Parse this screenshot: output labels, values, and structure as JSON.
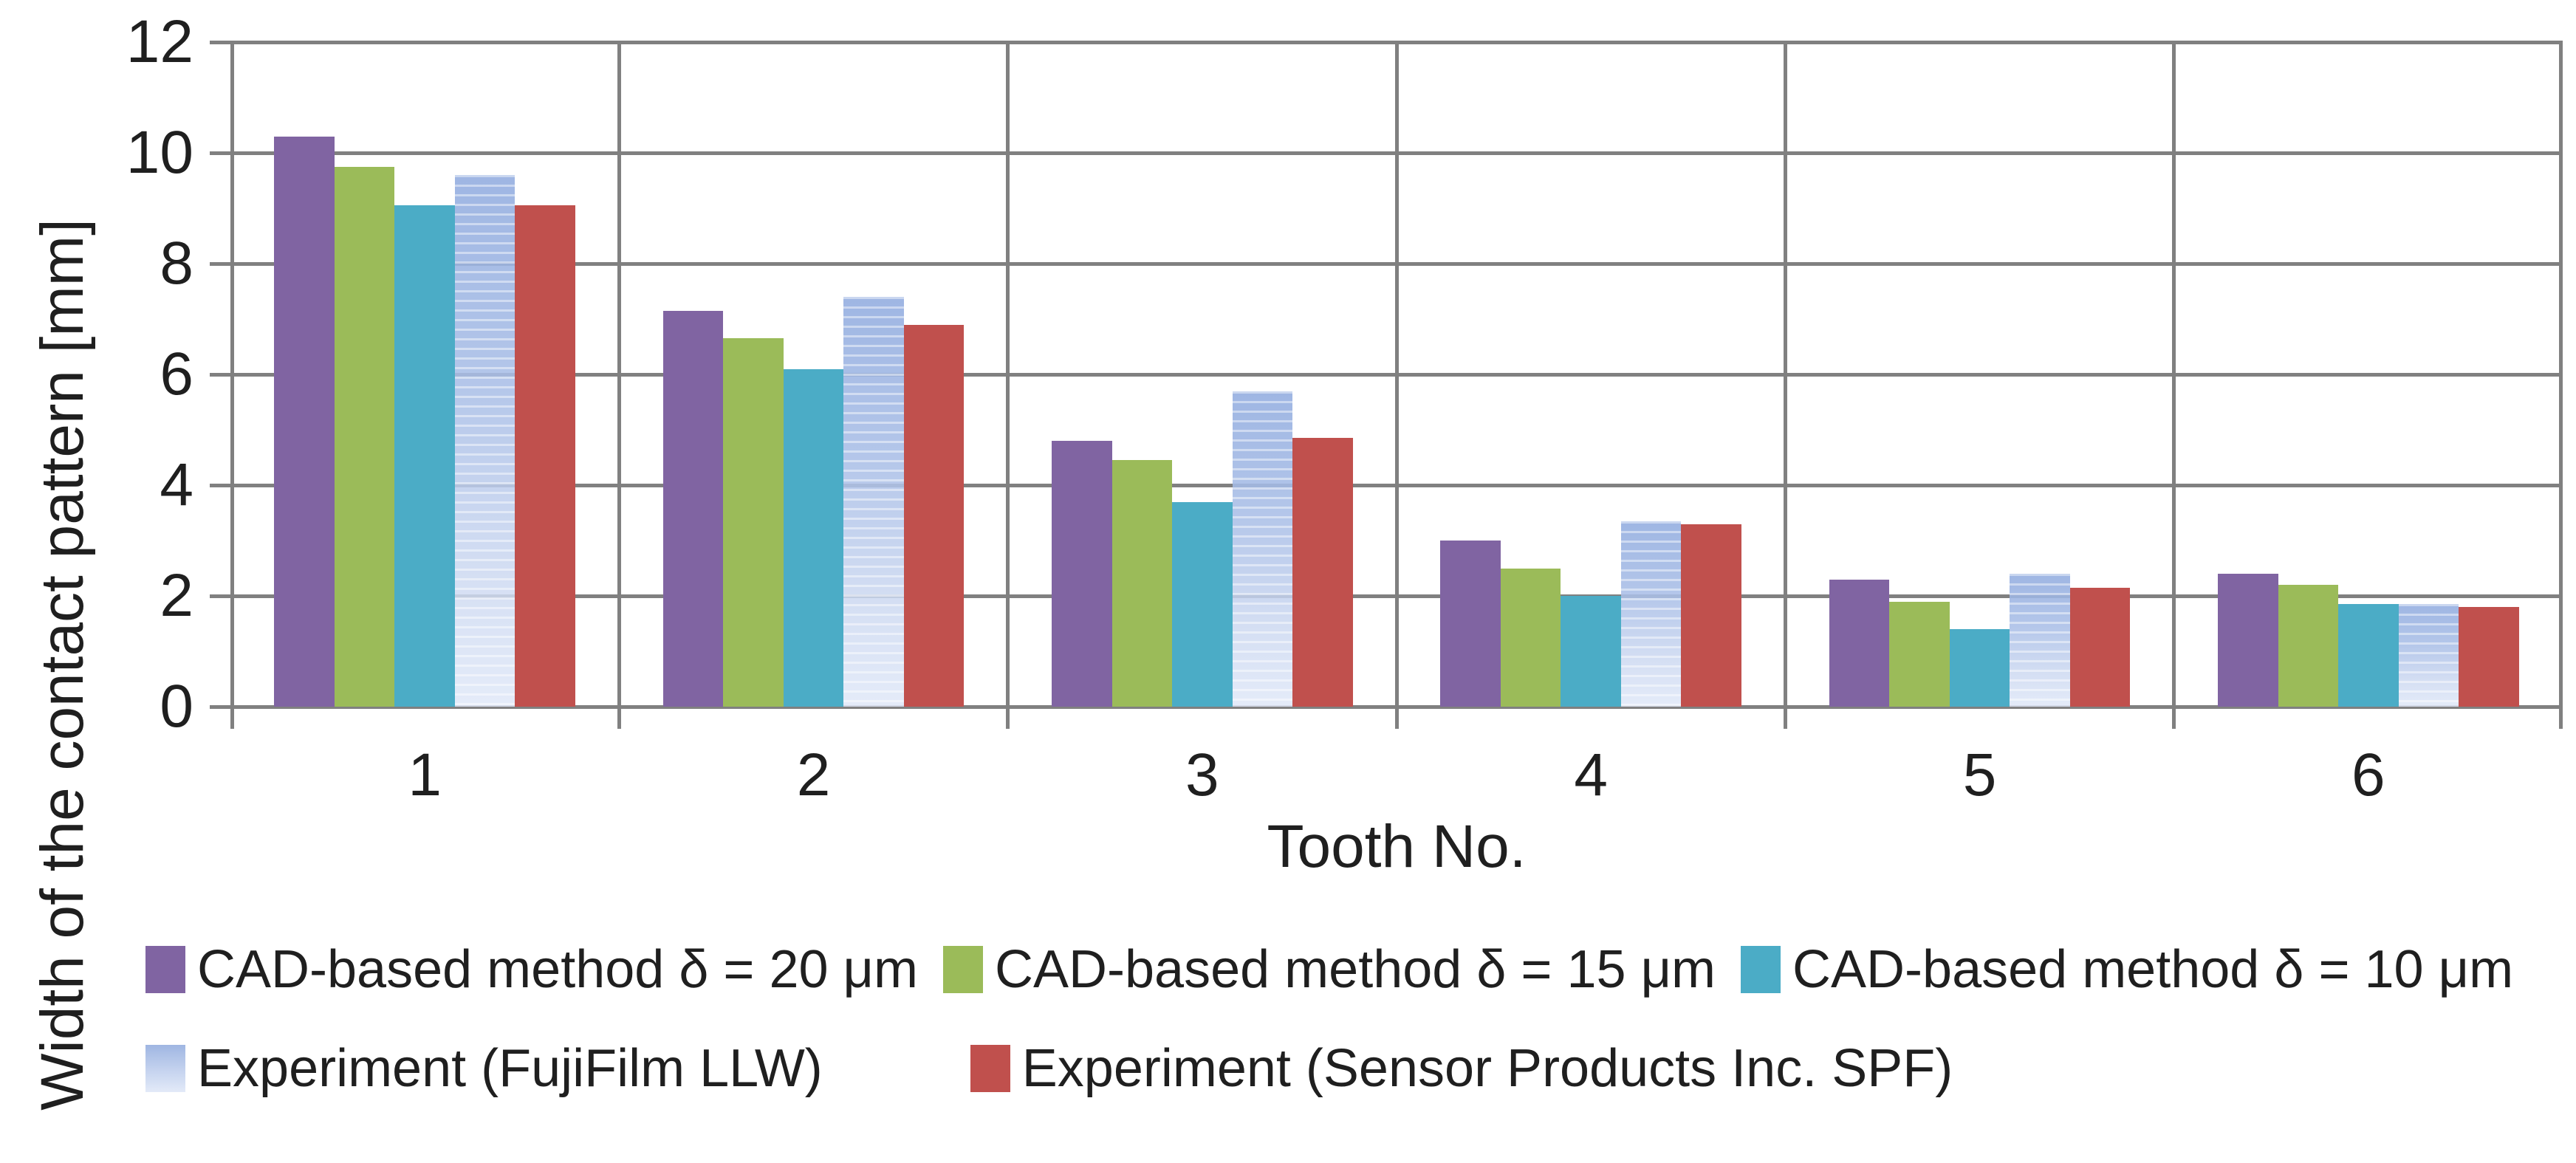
{
  "chart_data": {
    "type": "bar",
    "title": "",
    "xlabel": "Tooth No.",
    "ylabel": "Width of the contact pattern [mm]",
    "categories": [
      "1",
      "2",
      "3",
      "4",
      "5",
      "6"
    ],
    "ylim": [
      0,
      12
    ],
    "yticks": [
      0,
      2,
      4,
      6,
      8,
      10,
      12
    ],
    "grid": "horizontal gridlines plus vertical category separators",
    "legend_position": "bottom",
    "series": [
      {
        "name": "CAD-based method δ = 20 μm",
        "fill": "#8064A2",
        "texture": "solid",
        "values": [
          10.3,
          7.15,
          4.8,
          3.0,
          2.3,
          2.4
        ]
      },
      {
        "name": "CAD-based method δ = 15 μm",
        "fill": "#9BBB59",
        "texture": "solid",
        "values": [
          9.75,
          6.65,
          4.45,
          2.5,
          1.9,
          2.2
        ]
      },
      {
        "name": "CAD-based method δ = 10 μm",
        "fill": "#4BACC6",
        "texture": "solid",
        "values": [
          9.05,
          6.1,
          3.7,
          2.0,
          1.4,
          1.85
        ]
      },
      {
        "name": "Experiment (FujiFilm LLW)",
        "fill": "#AFC4EA",
        "texture": "striped",
        "values": [
          9.6,
          7.4,
          5.7,
          3.35,
          2.4,
          1.85
        ]
      },
      {
        "name": "Experiment (Sensor Products Inc. SPF)",
        "fill": "#C0504D",
        "texture": "solid",
        "values": [
          9.05,
          6.9,
          4.85,
          3.3,
          2.15,
          1.8
        ]
      }
    ],
    "legend_rows": [
      [
        0,
        1,
        2
      ],
      [
        3,
        4
      ]
    ]
  },
  "colors": {
    "background": "#ffffff",
    "grid": "#808080",
    "axis_text": "#1f1f1f"
  }
}
